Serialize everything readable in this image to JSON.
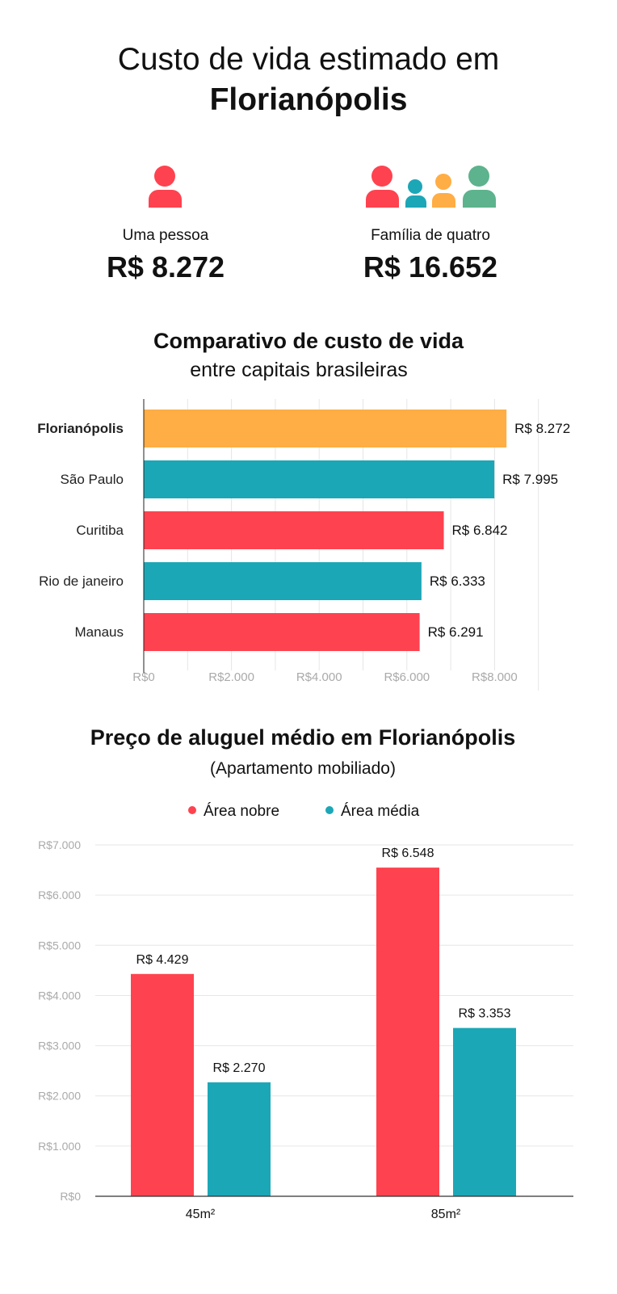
{
  "header": {
    "title_line1": "Custo de vida estimado em",
    "title_line2": "Florianópolis"
  },
  "summary": {
    "single": {
      "icon": "person-icon",
      "label": "Uma pessoa",
      "value": "R$ 8.272"
    },
    "family": {
      "icon": "family-icon",
      "label": "Família de quatro",
      "value": "R$ 16.652"
    }
  },
  "colors": {
    "red": "#FF424F",
    "teal": "#1CA7B7",
    "orange": "#FFAD45",
    "green": "#5CB38D"
  },
  "chart_data": [
    {
      "type": "bar",
      "orientation": "horizontal",
      "title": "Comparativo de custo de vida",
      "subtitle": "entre capitais brasileiras",
      "categories": [
        "Florianópolis",
        "São Paulo",
        "Curitiba",
        "Rio de janeiro",
        "Manaus"
      ],
      "values": [
        8272,
        7995,
        6842,
        6333,
        6291
      ],
      "data_labels": [
        "R$ 8.272",
        "R$ 7.995",
        "R$ 6.842",
        "R$ 6.333",
        "R$ 6.291"
      ],
      "bar_colors": [
        "#FFAD45",
        "#1CA7B7",
        "#FF424F",
        "#1CA7B7",
        "#FF424F"
      ],
      "xticks": [
        0,
        2000,
        4000,
        6000,
        8000
      ],
      "xtick_labels": [
        "R$0",
        "R$2.000",
        "R$4.000",
        "R$6.000",
        "R$8.000"
      ],
      "xlim": [
        0,
        9000
      ],
      "grid": true
    },
    {
      "type": "bar",
      "orientation": "vertical",
      "title": "Preço de aluguel médio em Florianópolis",
      "subtitle": "(Apartamento mobiliado)",
      "categories": [
        "45m²",
        "85m²"
      ],
      "series": [
        {
          "name": "Área nobre",
          "color": "#FF424F",
          "values": [
            4429,
            6548
          ],
          "data_labels": [
            "R$ 4.429",
            "R$ 6.548"
          ]
        },
        {
          "name": "Área média",
          "color": "#1CA7B7",
          "values": [
            2270,
            3353
          ],
          "data_labels": [
            "R$ 2.270",
            "R$ 3.353"
          ]
        }
      ],
      "yticks": [
        0,
        1000,
        2000,
        3000,
        4000,
        5000,
        6000,
        7000
      ],
      "ytick_labels": [
        "R$0",
        "R$1.000",
        "R$2.000",
        "R$3.000",
        "R$4.000",
        "R$5.000",
        "R$6.000",
        "R$7.000"
      ],
      "ylim": [
        0,
        7000
      ],
      "legend": "top",
      "grid": true
    }
  ]
}
